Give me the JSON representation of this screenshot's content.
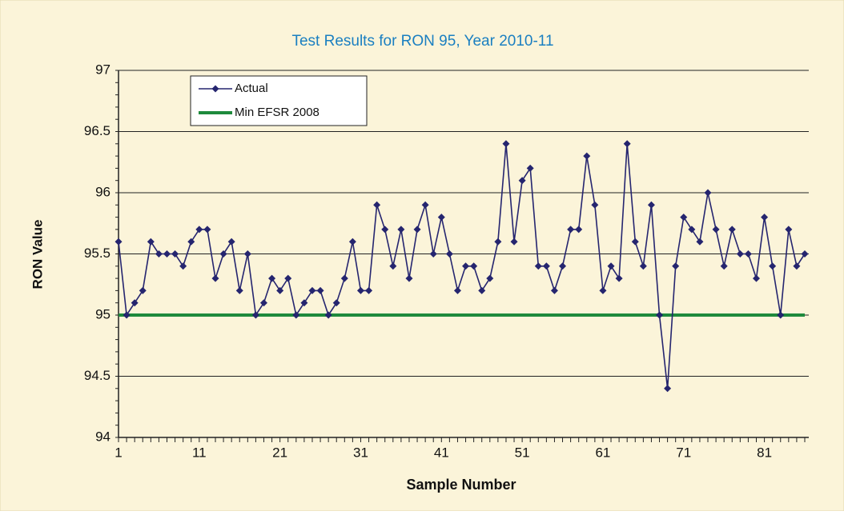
{
  "chart_data": {
    "type": "line",
    "title": "Test Results for RON 95, Year 2010-11",
    "x_label": "Sample Number",
    "y_label": "RON Value",
    "categories": [
      "1",
      null,
      null,
      null,
      null,
      null,
      null,
      null,
      null,
      null,
      "11",
      null,
      null,
      null,
      null,
      null,
      null,
      null,
      null,
      null,
      "21",
      null,
      null,
      null,
      null,
      null,
      null,
      null,
      null,
      null,
      "31",
      null,
      null,
      null,
      null,
      null,
      null,
      null,
      null,
      null,
      "41",
      null,
      null,
      null,
      null,
      null,
      null,
      null,
      null,
      null,
      "51",
      null,
      null,
      null,
      null,
      null,
      null,
      null,
      null,
      null,
      "61",
      null,
      null,
      null,
      null,
      null,
      null,
      null,
      null,
      null,
      "71",
      null,
      null,
      null,
      null,
      null,
      null,
      null,
      null,
      null,
      "81",
      null,
      null,
      null,
      null,
      null
    ],
    "series": [
      {
        "name": "Actual",
        "color": "#25256f",
        "marker": "diamond",
        "values": [
          95.6,
          95.0,
          95.1,
          95.2,
          95.6,
          95.5,
          95.5,
          95.5,
          95.4,
          95.6,
          95.7,
          95.7,
          95.3,
          95.5,
          95.6,
          95.2,
          95.5,
          95.0,
          95.1,
          95.3,
          95.2,
          95.3,
          95.0,
          95.1,
          95.2,
          95.2,
          95.0,
          95.1,
          95.3,
          95.6,
          95.2,
          95.2,
          95.9,
          95.7,
          95.4,
          95.7,
          95.3,
          95.7,
          95.9,
          95.5,
          95.8,
          95.5,
          95.2,
          95.4,
          95.4,
          95.2,
          95.3,
          95.6,
          96.4,
          95.6,
          96.1,
          96.2,
          95.4,
          95.4,
          95.2,
          95.4,
          95.7,
          95.7,
          96.3,
          95.9,
          95.2,
          95.4,
          95.3,
          96.4,
          95.6,
          95.4,
          95.9,
          95.0,
          94.4,
          95.4,
          95.8,
          95.7,
          95.6,
          96.0,
          95.7,
          95.4,
          95.7,
          95.5,
          95.5,
          95.3,
          95.8,
          95.4,
          95.0,
          95.7,
          95.4,
          95.5
        ]
      },
      {
        "name": "Min EFSR 2008",
        "color": "#1e8a3c",
        "marker": "none",
        "values": [
          95,
          95,
          95,
          95,
          95,
          95,
          95,
          95,
          95,
          95,
          95,
          95,
          95,
          95,
          95,
          95,
          95,
          95,
          95,
          95,
          95,
          95,
          95,
          95,
          95,
          95,
          95,
          95,
          95,
          95,
          95,
          95,
          95,
          95,
          95,
          95,
          95,
          95,
          95,
          95,
          95,
          95,
          95,
          95,
          95,
          95,
          95,
          95,
          95,
          95,
          95,
          95,
          95,
          95,
          95,
          95,
          95,
          95,
          95,
          95,
          95,
          95,
          95,
          95,
          95,
          95,
          95,
          95,
          95,
          95,
          95,
          95,
          95,
          95,
          95,
          95,
          95,
          95,
          95,
          95,
          95,
          95,
          95,
          95,
          95,
          95
        ]
      }
    ],
    "ylim": [
      94,
      97
    ],
    "yticks": [
      94,
      94.5,
      95,
      95.5,
      96,
      96.5,
      97
    ],
    "grid": true,
    "legend": "top-left"
  }
}
